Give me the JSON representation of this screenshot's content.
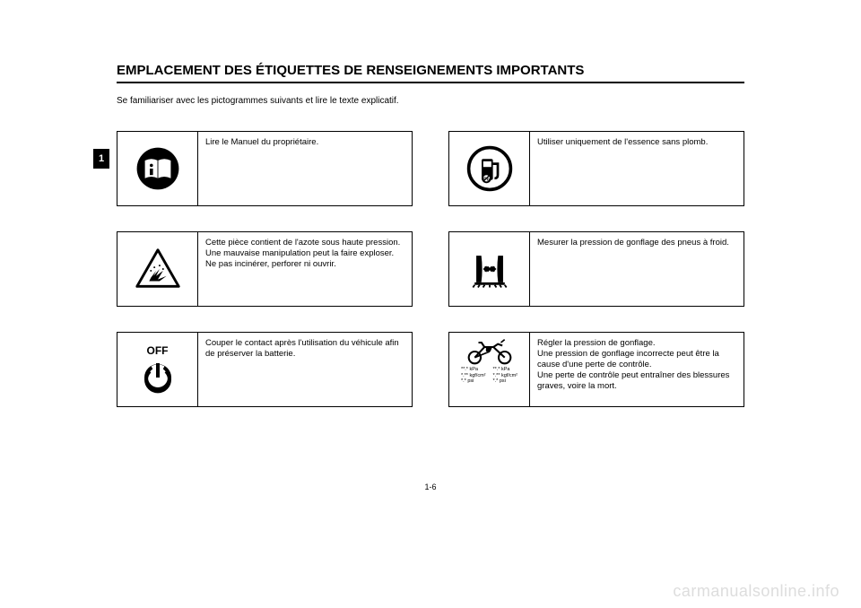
{
  "header": "EMPLACEMENT DES ÉTIQUETTES DE RENSEIGNEMENTS IMPORTANTS",
  "intro": "Se familiariser avec les pictogrammes suivants et lire le texte explicatif.",
  "side_tab": "1",
  "page_num": "1-6",
  "watermark": "carmanualsonline.info",
  "items": {
    "manual": {
      "text": "Lire le Manuel du propriétaire.",
      "icon_name": "manual-icon"
    },
    "fuel": {
      "text": "Utiliser uniquement de l'essence sans plomb.",
      "icon_name": "fuel-icon"
    },
    "nitrogen": {
      "text": "Cette pièce contient de l'azote sous haute pression.\nUne mauvaise manipulation peut la faire exploser. Ne pas incinérer, perforer ni ouvrir.",
      "icon_name": "explosion-icon"
    },
    "tire_pressure_cold": {
      "text": "Mesurer la pression de gonflage des pneus à froid.",
      "icon_name": "tire-pressure-icon"
    },
    "off": {
      "text": "Couper le contact après l'utilisation du véhicule afin de préserver la batterie.",
      "icon_name": "power-off-icon",
      "label": "OFF"
    },
    "inflate": {
      "text": "Régler la pression de gonflage.\nUne pression de gonflage incorrecte peut être la cause d'une perte de contrôle.\nUne perte de contrôle peut entraîner des blessures graves, voire la mort.",
      "icon_name": "motorcycle-icon",
      "units_left": "**.* kPa\n*.** kgf/cm²\n*.* psi",
      "units_right": "**.* kPa\n*.** kgf/cm²\n*.* psi"
    }
  },
  "colors": {
    "text": "#000000",
    "bg": "#ffffff",
    "watermark": "#dddddd"
  }
}
